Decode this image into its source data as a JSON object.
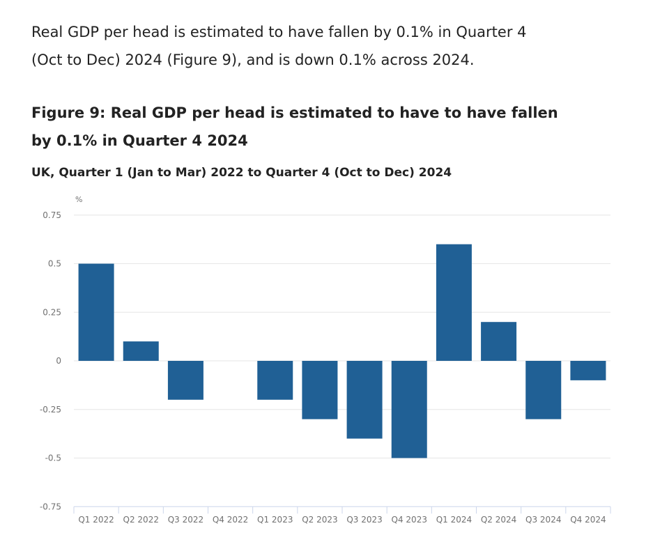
{
  "intro_text": "Real GDP per head is estimated to have fallen by 0.1% in Quarter 4 (Oct to Dec) 2024 (Figure 9), and is down 0.1% across 2024.",
  "figure_title": "Figure 9: Real GDP per head is estimated to have to have fallen by 0.1% in Quarter 4 2024",
  "figure_subtitle": "UK, Quarter 1 (Jan to Mar) 2022 to Quarter 4 (Oct to Dec) 2024",
  "colors": {
    "bar": "#206095",
    "grid": "#e6e6e6",
    "axis": "#ccd6eb"
  },
  "chart_data": {
    "type": "bar",
    "title": "Figure 9: Real GDP per head is estimated to have to have fallen by 0.1% in Quarter 4 2024",
    "ylabel": "%",
    "xlabel": "",
    "ylim": [
      -0.75,
      0.75
    ],
    "yticks": [
      0.75,
      0.5,
      0.25,
      0,
      -0.25,
      -0.5,
      -0.75
    ],
    "ytick_labels": [
      "0.75",
      "0.5",
      "0.25",
      "0",
      "-0.25",
      "-0.5",
      "-0.75"
    ],
    "grid": true,
    "categories": [
      "Q1 2022",
      "Q2 2022",
      "Q3 2022",
      "Q4 2022",
      "Q1 2023",
      "Q2 2023",
      "Q3 2023",
      "Q4 2023",
      "Q1 2024",
      "Q2 2024",
      "Q3 2024",
      "Q4 2024"
    ],
    "values": [
      0.5,
      0.1,
      -0.2,
      0.0,
      -0.2,
      -0.3,
      -0.4,
      -0.5,
      0.6,
      0.2,
      -0.3,
      -0.1
    ]
  }
}
